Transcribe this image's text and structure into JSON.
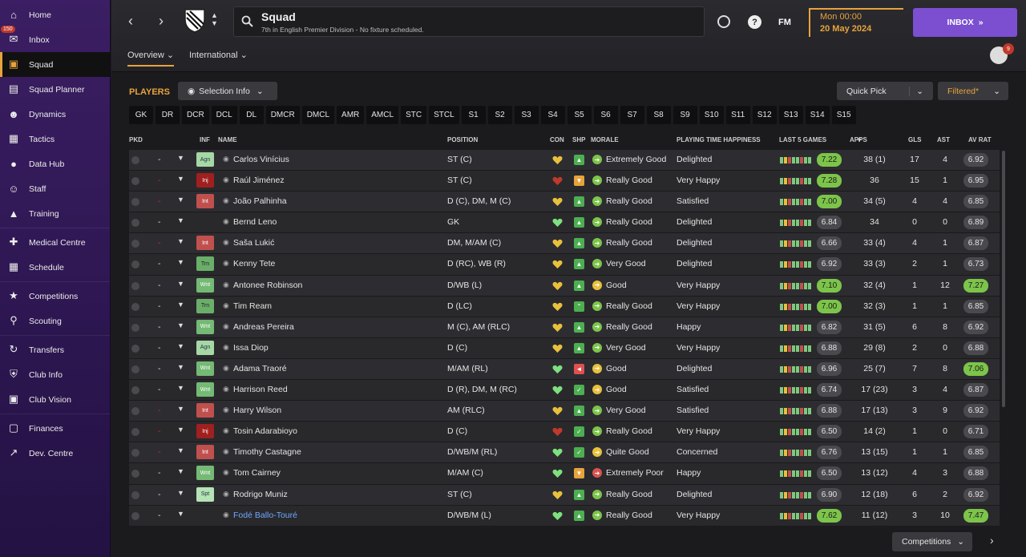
{
  "sidebar": {
    "items": [
      {
        "label": "Home",
        "icon": "home-icon",
        "active": false
      },
      {
        "label": "Inbox",
        "icon": "inbox-icon",
        "badge": "150",
        "active": false
      },
      {
        "label": "Squad",
        "icon": "squad-shirt-icon",
        "active": true
      },
      {
        "label": "Squad Planner",
        "icon": "clipboard-icon",
        "active": false
      },
      {
        "label": "Dynamics",
        "icon": "people-icon",
        "active": false
      },
      {
        "label": "Tactics",
        "icon": "tactics-board-icon",
        "active": false
      },
      {
        "label": "Data Hub",
        "icon": "globe-icon",
        "active": false
      },
      {
        "label": "Staff",
        "icon": "staff-icon",
        "active": false
      },
      {
        "label": "Training",
        "icon": "cone-icon",
        "active": false
      },
      {
        "label": "Medical Centre",
        "icon": "medical-icon",
        "active": false
      },
      {
        "label": "Schedule",
        "icon": "calendar-icon",
        "active": false
      },
      {
        "label": "Competitions",
        "icon": "trophy-icon",
        "active": false
      },
      {
        "label": "Scouting",
        "icon": "search-icon",
        "active": false
      },
      {
        "label": "Transfers",
        "icon": "transfer-icon",
        "active": false
      },
      {
        "label": "Club Info",
        "icon": "shield-icon",
        "active": false
      },
      {
        "label": "Club Vision",
        "icon": "briefcase-icon",
        "active": false
      },
      {
        "label": "Finances",
        "icon": "money-icon",
        "active": false
      },
      {
        "label": "Dev. Centre",
        "icon": "development-icon",
        "active": false
      }
    ]
  },
  "header": {
    "title": "Squad",
    "subtitle": "7th in English Premier Division - No fixture scheduled.",
    "tabs": [
      "Overview",
      "International"
    ],
    "date_time": "Mon 00:00",
    "date": "20 May 2024",
    "inbox_label": "INBOX",
    "fm_label": "FM",
    "notif_count": "9"
  },
  "toolbar": {
    "players_label": "PLAYERS",
    "selection_info": "Selection Info",
    "quick_pick": "Quick Pick",
    "filtered": "Filtered*",
    "positions": [
      "GK",
      "DR",
      "DCR",
      "DCL",
      "DL",
      "DMCR",
      "DMCL",
      "AMR",
      "AMCL",
      "STC",
      "STCL",
      "S1",
      "S2",
      "S3",
      "S4",
      "S5",
      "S6",
      "S7",
      "S8",
      "S9",
      "S10",
      "S11",
      "S12",
      "S13",
      "S14",
      "S15"
    ]
  },
  "columns": {
    "pkd": "PKD",
    "inf": "INF",
    "name": "NAME",
    "position": "POSITION",
    "con": "CON",
    "shp": "SHP",
    "morale": "MORALE",
    "pth": "PLAYING TIME HAPPINESS",
    "last5": "LAST 5 GAMES",
    "apps": "APPS",
    "gls": "GLS",
    "ast": "AST",
    "avrat": "AV RAT"
  },
  "players": [
    {
      "dash": "-",
      "dash_red": false,
      "inf": "Agn",
      "inf_type": "agn",
      "name": "Carlos Vinícius",
      "position": "ST (C)",
      "con": "yellow",
      "ship": "up",
      "morale": "Extremely Good",
      "pth": "Delighted",
      "last5": "7.22",
      "last5_hi": true,
      "apps": "38 (1)",
      "gls": "17",
      "ast": "4",
      "avrat": "6.92",
      "avrat_hi": false
    },
    {
      "dash": "-",
      "dash_red": true,
      "inf": "Inj",
      "inf_type": "inj",
      "name": "Raúl Jiménez",
      "position": "ST (C)",
      "con": "red",
      "ship": "orange",
      "morale": "Really Good",
      "pth": "Very Happy",
      "last5": "7.28",
      "last5_hi": true,
      "apps": "36",
      "gls": "15",
      "ast": "1",
      "avrat": "6.95",
      "avrat_hi": false
    },
    {
      "dash": "-",
      "dash_red": true,
      "inf": "Int",
      "inf_type": "int",
      "name": "João Palhinha",
      "position": "D (C), DM, M (C)",
      "con": "yellow",
      "ship": "up",
      "morale": "Really Good",
      "pth": "Satisfied",
      "last5": "7.00",
      "last5_hi": true,
      "apps": "34 (5)",
      "gls": "4",
      "ast": "4",
      "avrat": "6.85",
      "avrat_hi": false
    },
    {
      "dash": "-",
      "dash_red": false,
      "inf": "",
      "inf_type": "",
      "name": "Bernd Leno",
      "position": "GK",
      "con": "green",
      "ship": "up",
      "morale": "Really Good",
      "pth": "Delighted",
      "last5": "6.84",
      "last5_hi": false,
      "apps": "34",
      "gls": "0",
      "ast": "0",
      "avrat": "6.89",
      "avrat_hi": false
    },
    {
      "dash": "-",
      "dash_red": true,
      "inf": "Int",
      "inf_type": "int",
      "name": "Saša Lukić",
      "position": "DM, M/AM (C)",
      "con": "yellow",
      "ship": "up",
      "morale": "Really Good",
      "pth": "Delighted",
      "last5": "6.66",
      "last5_hi": false,
      "apps": "33 (4)",
      "gls": "4",
      "ast": "1",
      "avrat": "6.87",
      "avrat_hi": false
    },
    {
      "dash": "-",
      "dash_red": false,
      "inf": "Trn",
      "inf_type": "trn",
      "name": "Kenny Tete",
      "position": "D (RC), WB (R)",
      "con": "yellow",
      "ship": "up",
      "morale": "Very Good",
      "pth": "Delighted",
      "last5": "6.92",
      "last5_hi": false,
      "apps": "33 (3)",
      "gls": "2",
      "ast": "1",
      "avrat": "6.73",
      "avrat_hi": false
    },
    {
      "dash": "-",
      "dash_red": false,
      "inf": "Wnt",
      "inf_type": "wnt",
      "name": "Antonee Robinson",
      "position": "D/WB (L)",
      "con": "yellow",
      "ship": "up",
      "morale": "Good",
      "pth": "Very Happy",
      "last5": "7.10",
      "last5_hi": true,
      "apps": "32 (4)",
      "gls": "1",
      "ast": "12",
      "avrat": "7.27",
      "avrat_hi": true
    },
    {
      "dash": "-",
      "dash_red": false,
      "inf": "Trn",
      "inf_type": "trn",
      "name": "Tim Ream",
      "position": "D (LC)",
      "con": "yellow",
      "ship": "caret",
      "morale": "Really Good",
      "pth": "Very Happy",
      "last5": "7.00",
      "last5_hi": true,
      "apps": "32 (3)",
      "gls": "1",
      "ast": "1",
      "avrat": "6.85",
      "avrat_hi": false
    },
    {
      "dash": "-",
      "dash_red": false,
      "inf": "Wnt",
      "inf_type": "wnt",
      "name": "Andreas Pereira",
      "position": "M (C), AM (RLC)",
      "con": "yellow",
      "ship": "up",
      "morale": "Really Good",
      "pth": "Happy",
      "last5": "6.82",
      "last5_hi": false,
      "apps": "31 (5)",
      "gls": "6",
      "ast": "8",
      "avrat": "6.92",
      "avrat_hi": false
    },
    {
      "dash": "-",
      "dash_red": false,
      "inf": "Agn",
      "inf_type": "agn",
      "name": "Issa Diop",
      "position": "D (C)",
      "con": "yellow",
      "ship": "up",
      "morale": "Very Good",
      "pth": "Very Happy",
      "last5": "6.88",
      "last5_hi": false,
      "apps": "29 (8)",
      "gls": "2",
      "ast": "0",
      "avrat": "6.88",
      "avrat_hi": false
    },
    {
      "dash": "-",
      "dash_red": false,
      "inf": "Wnt",
      "inf_type": "wnt",
      "name": "Adama Traoré",
      "position": "M/AM (RL)",
      "con": "green",
      "ship": "red",
      "morale": "Good",
      "pth": "Delighted",
      "last5": "6.96",
      "last5_hi": false,
      "apps": "25 (7)",
      "gls": "7",
      "ast": "8",
      "avrat": "7.06",
      "avrat_hi": true
    },
    {
      "dash": "-",
      "dash_red": false,
      "inf": "Wnt",
      "inf_type": "wnt",
      "name": "Harrison Reed",
      "position": "D (R), DM, M (RC)",
      "con": "green",
      "ship": "check",
      "morale": "Good",
      "pth": "Satisfied",
      "last5": "6.74",
      "last5_hi": false,
      "apps": "17 (23)",
      "gls": "3",
      "ast": "4",
      "avrat": "6.87",
      "avrat_hi": false
    },
    {
      "dash": "-",
      "dash_red": true,
      "inf": "Int",
      "inf_type": "int",
      "name": "Harry Wilson",
      "position": "AM (RLC)",
      "con": "yellow",
      "ship": "up",
      "morale": "Very Good",
      "pth": "Satisfied",
      "last5": "6.88",
      "last5_hi": false,
      "apps": "17 (13)",
      "gls": "3",
      "ast": "9",
      "avrat": "6.92",
      "avrat_hi": false
    },
    {
      "dash": "-",
      "dash_red": true,
      "inf": "Inj",
      "inf_type": "inj",
      "name": "Tosin Adarabioyo",
      "position": "D (C)",
      "con": "red",
      "ship": "check",
      "morale": "Really Good",
      "pth": "Very Happy",
      "last5": "6.50",
      "last5_hi": false,
      "apps": "14 (2)",
      "gls": "1",
      "ast": "0",
      "avrat": "6.71",
      "avrat_hi": false
    },
    {
      "dash": "-",
      "dash_red": true,
      "inf": "Int",
      "inf_type": "int",
      "name": "Timothy Castagne",
      "position": "D/WB/M (RL)",
      "con": "green",
      "ship": "check",
      "morale": "Quite Good",
      "pth": "Concerned",
      "last5": "6.76",
      "last5_hi": false,
      "apps": "13 (15)",
      "gls": "1",
      "ast": "1",
      "avrat": "6.85",
      "avrat_hi": false
    },
    {
      "dash": "-",
      "dash_red": false,
      "inf": "Wnt",
      "inf_type": "wnt",
      "name": "Tom Cairney",
      "position": "M/AM (C)",
      "con": "green",
      "ship": "orange",
      "morale": "Extremely Poor",
      "pth": "Happy",
      "last5": "6.50",
      "last5_hi": false,
      "apps": "13 (12)",
      "gls": "4",
      "ast": "3",
      "avrat": "6.88",
      "avrat_hi": false
    },
    {
      "dash": "-",
      "dash_red": false,
      "inf": "Spt",
      "inf_type": "spt",
      "name": "Rodrigo Muniz",
      "position": "ST (C)",
      "con": "yellow",
      "ship": "up",
      "morale": "Really Good",
      "pth": "Delighted",
      "last5": "6.90",
      "last5_hi": false,
      "apps": "12 (18)",
      "gls": "6",
      "ast": "2",
      "avrat": "6.92",
      "avrat_hi": false
    },
    {
      "dash": "-",
      "dash_red": false,
      "inf": "",
      "inf_type": "",
      "name": "Fodé Ballo-Touré",
      "position": "D/WB/M (L)",
      "con": "green",
      "ship": "up",
      "morale": "Really Good",
      "pth": "Very Happy",
      "last5": "7.62",
      "last5_hi": true,
      "apps": "11 (12)",
      "gls": "3",
      "ast": "10",
      "avrat": "7.47",
      "avrat_hi": true,
      "link": true
    }
  ],
  "footer": {
    "competitions_label": "Competitions"
  }
}
